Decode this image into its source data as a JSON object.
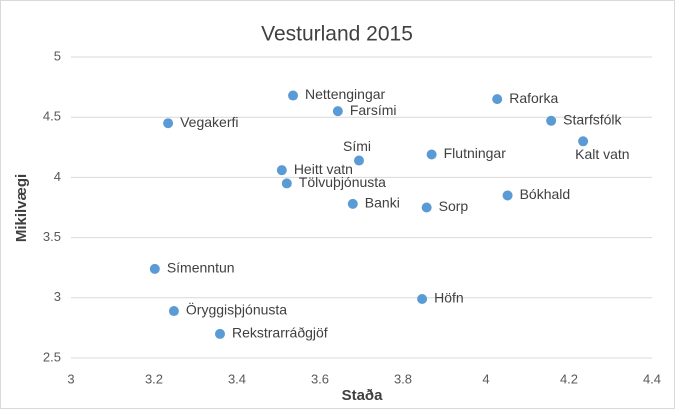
{
  "chart_data": {
    "type": "scatter",
    "title": "Vesturland 2015",
    "xlabel": "Staða",
    "ylabel": "Mikilvægi",
    "labels": [
      "Vegakerfi",
      "Nettengingar",
      "Farsími",
      "Raforka",
      "Starfsfólk",
      "Kalt vatn",
      "Sími",
      "Flutningar",
      "Heitt vatn",
      "Tölvuþjónusta",
      "Banki",
      "Sorp",
      "Bókhald",
      "Símenntun",
      "Höfn",
      "Öryggisþjónusta",
      "Rekstrarráðgjöf"
    ],
    "x": [
      3.234,
      3.535,
      3.643,
      4.027,
      4.157,
      4.234,
      3.694,
      3.869,
      3.508,
      3.52,
      3.679,
      3.857,
      4.052,
      3.202,
      3.846,
      3.248,
      3.359
    ],
    "values": [
      4.45,
      4.68,
      4.55,
      4.65,
      4.47,
      4.3,
      4.14,
      4.19,
      4.06,
      3.95,
      3.78,
      3.75,
      3.85,
      3.24,
      2.99,
      2.89,
      2.7
    ],
    "color": "#5b9bd5",
    "xlim": [
      3,
      4.4
    ],
    "xticks": [
      3,
      3.2,
      3.4,
      3.6,
      3.8,
      4,
      4.2,
      4.4
    ],
    "ylim": [
      2.5,
      5
    ],
    "yticks": [
      2.5,
      3,
      3.5,
      4,
      4.5,
      5
    ],
    "grid": true
  }
}
